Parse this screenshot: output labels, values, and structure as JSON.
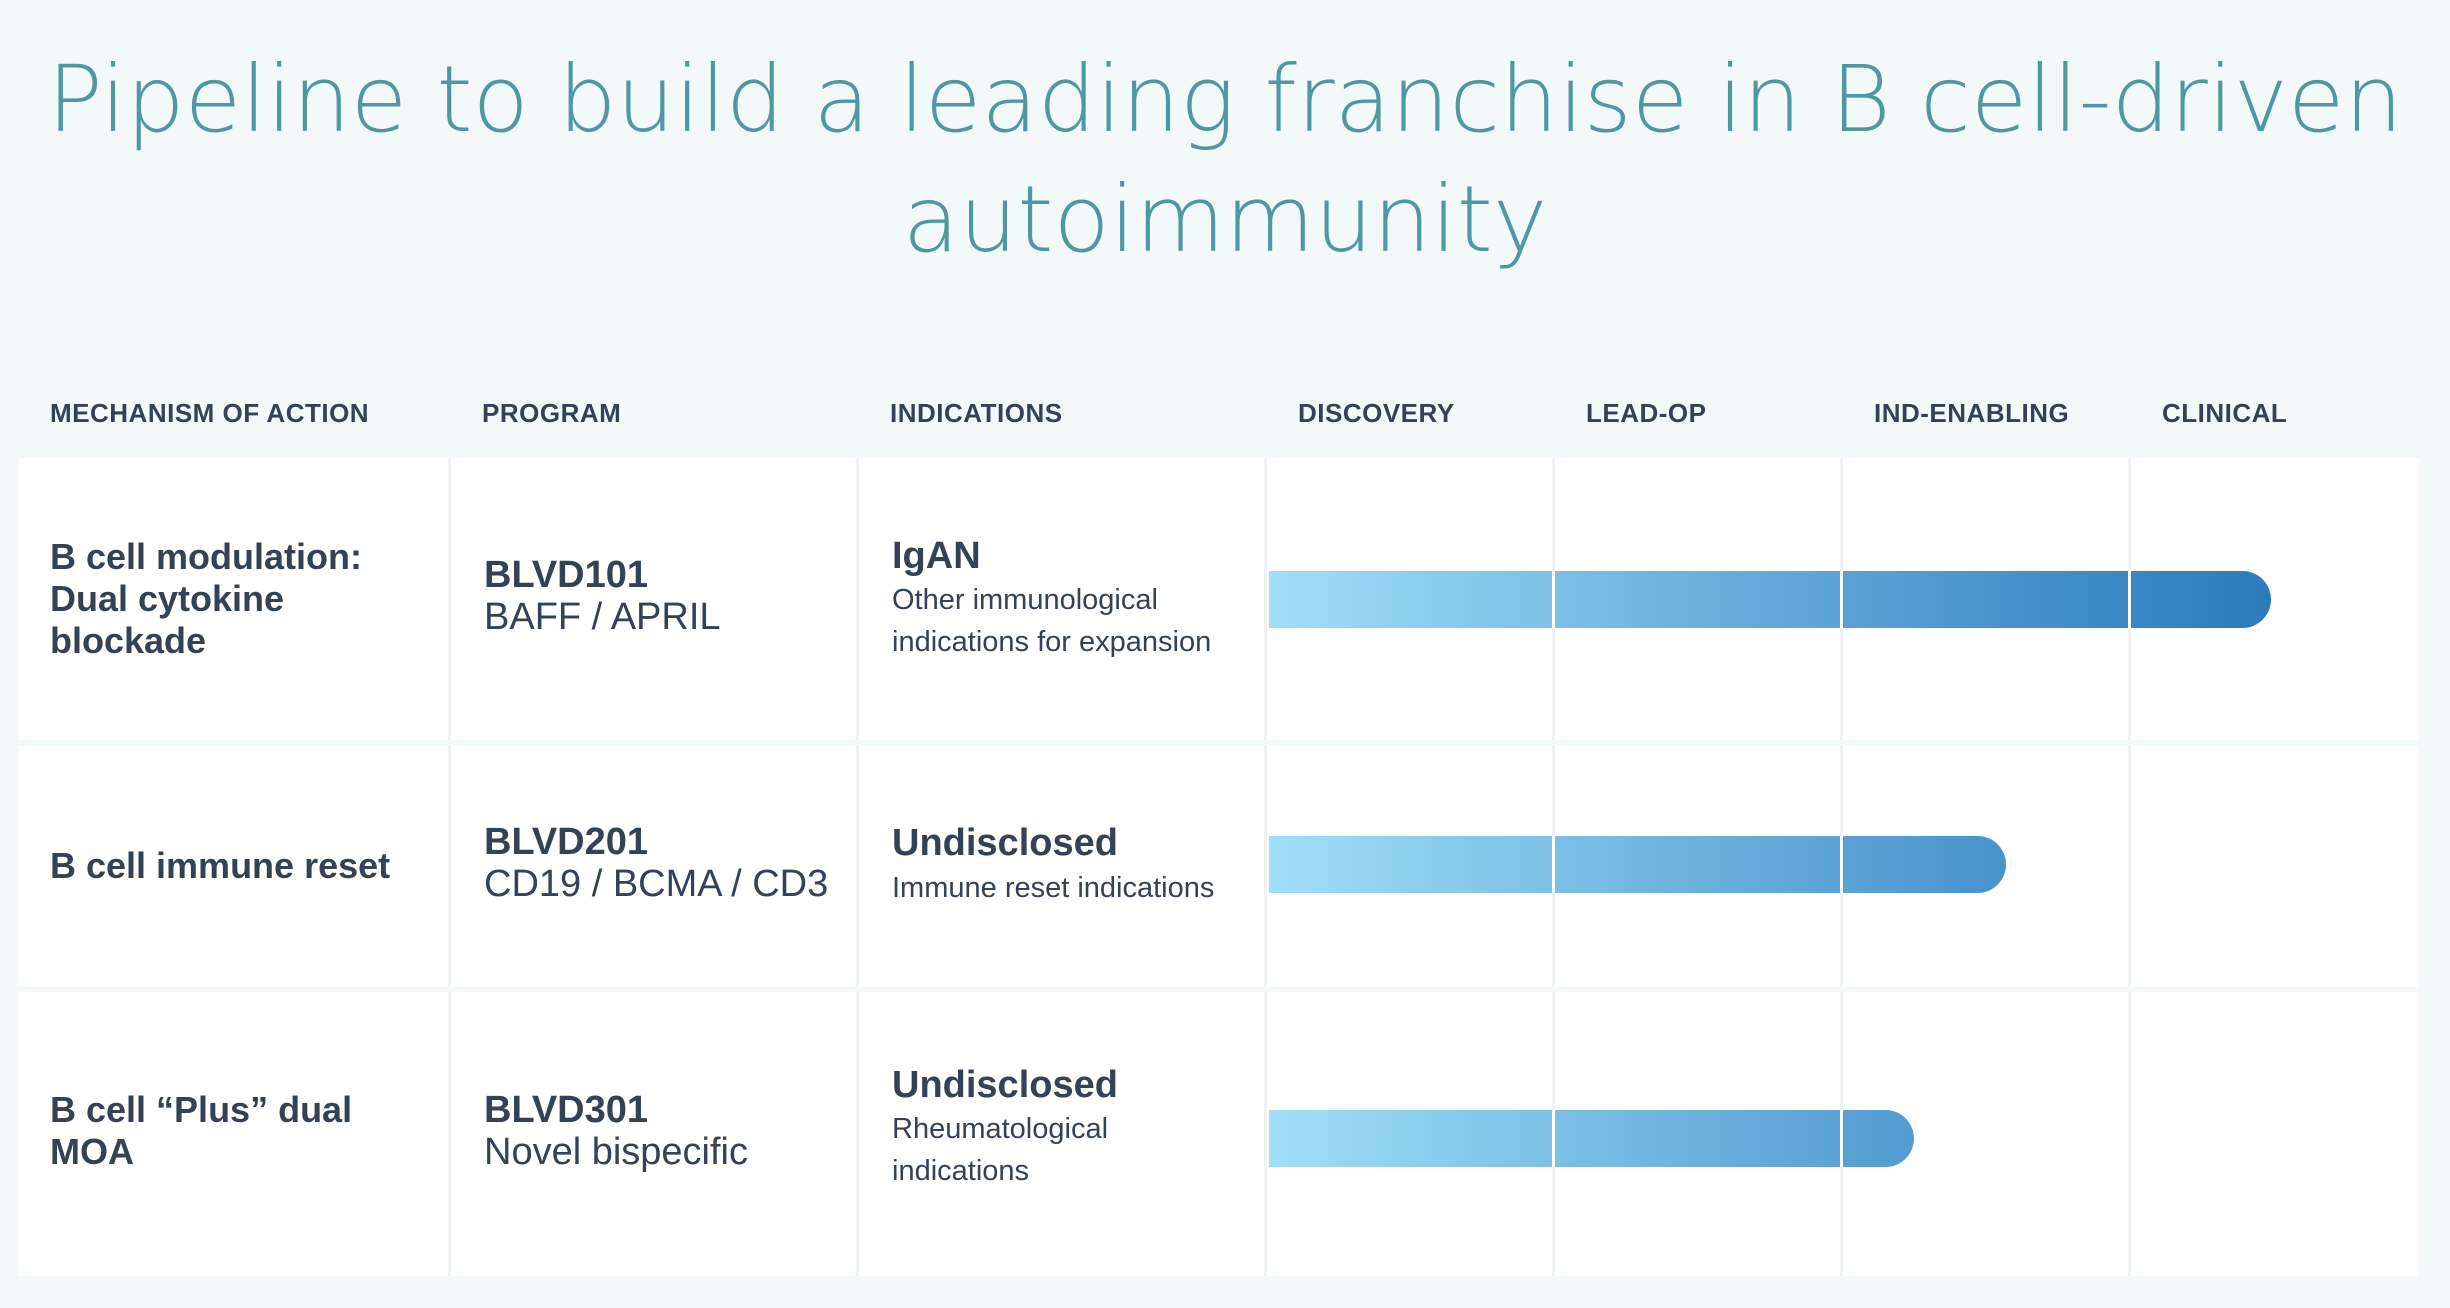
{
  "title": "Pipeline to build a leading franchise in B cell-driven autoimmunity",
  "headers": {
    "moa": "MECHANISM OF ACTION",
    "program": "PROGRAM",
    "indications": "INDICATIONS",
    "stages": [
      "DISCOVERY",
      "LEAD-OP",
      "IND-ENABLING",
      "CLINICAL"
    ]
  },
  "colors": {
    "title": "#4e98a4",
    "bar_start": "#9fdff8",
    "bar_end": "#1f6db1",
    "text": "#344256",
    "background": "#f3f9f9"
  },
  "rows": [
    {
      "moa": "B cell modulation: Dual cytokine blockade",
      "program": "BLVD101",
      "target": "BAFF / APRIL",
      "indication": "IgAN",
      "indication_detail": "Other immunological indications for expansion",
      "progress_stages": 3.48
    },
    {
      "moa": "B cell immune reset",
      "program": "BLVD201",
      "target": "CD19 / BCMA / CD3",
      "indication": "Undisclosed",
      "indication_detail": "Immune reset indications",
      "progress_stages": 2.56
    },
    {
      "moa": "B cell “Plus” dual MOA",
      "program": "BLVD301",
      "target": "Novel bispecific",
      "indication": "Undisclosed",
      "indication_detail": "Rheumatological indications",
      "progress_stages": 2.24
    }
  ]
}
